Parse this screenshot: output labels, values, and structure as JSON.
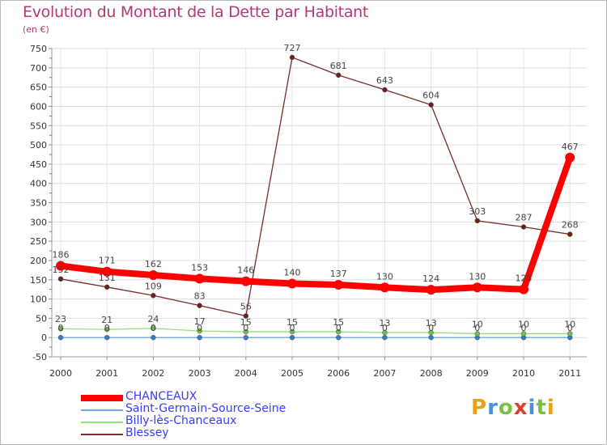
{
  "title": "Evolution du Montant de la Dette par Habitant",
  "subtitle": "(en €)",
  "logo": {
    "text": "Proxiti",
    "colors": [
      "#e8a21a",
      "#4a90d9",
      "#7ac142",
      "#d9412b",
      "#4a90d9",
      "#7ac142",
      "#e8a21a"
    ]
  },
  "chart_data": {
    "type": "line",
    "title": "Evolution du Montant de la Dette par Habitant",
    "ylabel": "(en €)",
    "xlabel": "",
    "ylim": [
      -50,
      750
    ],
    "yticks": [
      "-50",
      "0",
      "50",
      "100",
      "150",
      "200",
      "250",
      "300",
      "350",
      "400",
      "450",
      "500",
      "550",
      "600",
      "650",
      "700",
      "750"
    ],
    "categories": [
      "2000",
      "2001",
      "2002",
      "2003",
      "2004",
      "2005",
      "2006",
      "2007",
      "2008",
      "2009",
      "2010",
      "2011"
    ],
    "grid": true,
    "series": [
      {
        "name": "CHANCEAUX",
        "color": "#ff0000",
        "values": [
          186,
          171,
          162,
          153,
          146,
          140,
          137,
          130,
          124,
          130,
          125,
          467
        ]
      },
      {
        "name": "Saint-Germain-Source-Seine",
        "color": "#6fa8dc",
        "values": [
          0,
          0,
          0,
          0,
          0,
          0,
          0,
          0,
          0,
          0,
          0,
          0
        ]
      },
      {
        "name": "Billy-lès-Chanceaux",
        "color": "#93e07a",
        "values": [
          23,
          21,
          24,
          17,
          15,
          15,
          15,
          13,
          13,
          10,
          10,
          10
        ]
      },
      {
        "name": "Blessey",
        "color": "#7b2a2a",
        "values": [
          152,
          131,
          109,
          83,
          56,
          727,
          681,
          643,
          604,
          303,
          287,
          268
        ]
      }
    ]
  }
}
